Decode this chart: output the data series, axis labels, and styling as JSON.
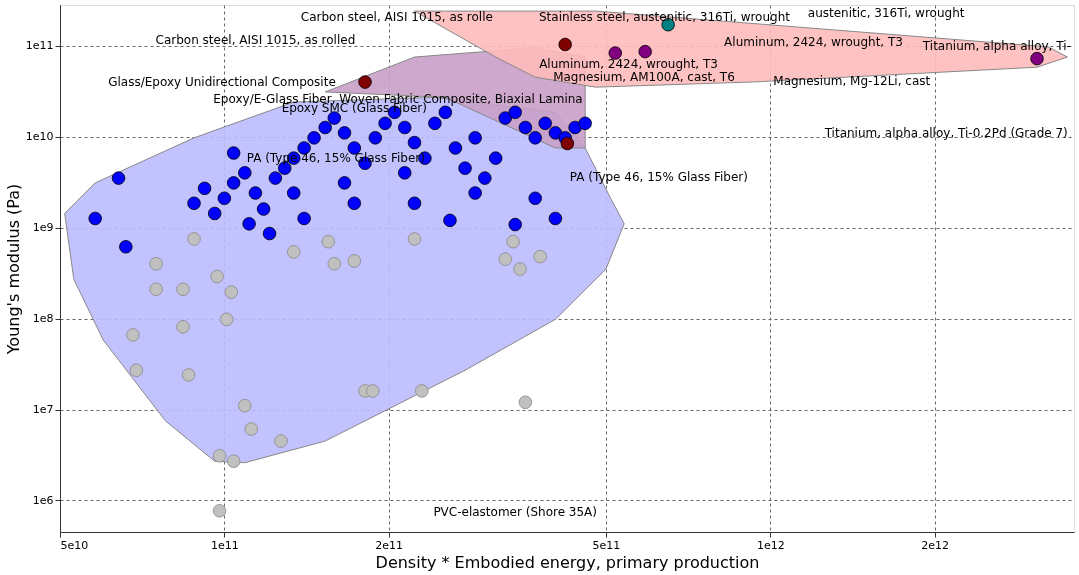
{
  "chart_data": {
    "type": "scatter",
    "xlabel": "Density * Embodied energy, primary production",
    "ylabel": "Young's modulus (Pa)",
    "log": "xy",
    "grid": true,
    "marker": "circle",
    "xlim": [
      50000000000.0,
      3600000000000.0
    ],
    "ylim": [
      450000.0,
      280000000000.0
    ],
    "xticks": [
      {
        "value": 50000000000.0,
        "label": "5e10"
      },
      {
        "value": 100000000000.0,
        "label": "1e11"
      },
      {
        "value": 200000000000.0,
        "label": "2e11"
      },
      {
        "value": 500000000000.0,
        "label": "5e11"
      },
      {
        "value": 1000000000000.0,
        "label": "1e12"
      },
      {
        "value": 2000000000000.0,
        "label": "2e12"
      }
    ],
    "yticks": [
      {
        "value": 1000000.0,
        "label": "1e6"
      },
      {
        "value": 10000000.0,
        "label": "1e7"
      },
      {
        "value": 100000000.0,
        "label": "1e8"
      },
      {
        "value": 1000000000.0,
        "label": "1e9"
      },
      {
        "value": 10000000000.0,
        "label": "1e10"
      },
      {
        "value": 100000000000.0,
        "label": "1e11"
      }
    ],
    "series": [
      {
        "type": "area",
        "marker": "none",
        "color": "#bbbbff",
        "x": [
          51000000000.0,
          58000000000.0,
          88000000000.0,
          134000000000.0,
          243000000000.0,
          404000000000.0,
          458000000000.0,
          510000000000.0,
          540000000000.0,
          500000000000.0,
          404000000000.0,
          276000000000.0,
          153000000000.0,
          109000000000.0,
          96000000000.0,
          78000000000.0,
          60000000000.0,
          53000000000.0,
          51000000000.0
        ],
        "values": [
          1430000000.0,
          3100000000.0,
          9700000000.0,
          24000000000.0,
          27000000000.0,
          18500000000.0,
          7500000000.0,
          2100000000.0,
          1100000000.0,
          350000000.0,
          98000000.0,
          27000000.0,
          4500000.0,
          2600000.0,
          2700000.0,
          7500000.0,
          58000000.0,
          270000000.0,
          1430000000.0
        ]
      },
      {
        "type": "area",
        "marker": "none",
        "color": "#c9a0c8",
        "x": [
          153000000000.0,
          223000000000.0,
          371000000000.0,
          458000000000.0,
          458000000000.0,
          404000000000.0,
          254000000000.0,
          153000000000.0
        ],
        "values": [
          31000000000.0,
          75000000000.0,
          95000000000.0,
          75000000000.0,
          7500000000.0,
          7500000000.0,
          27000000000.0,
          31000000000.0
        ]
      },
      {
        "type": "area",
        "marker": "none",
        "color": "#ffbbbb",
        "x": [
          223000000000.0,
          479000000000.0,
          3230000000000.0,
          3500000000000.0,
          3080000000000.0,
          940000000000.0,
          479000000000.0,
          371000000000.0,
          314000000000.0,
          223000000000.0
        ],
        "values": [
          240000000000.0,
          240000000000.0,
          97000000000.0,
          75000000000.0,
          58000000000.0,
          40000000000.0,
          35000000000.0,
          45000000000.0,
          75000000000.0,
          240000000000.0
        ]
      },
      {
        "color": "#c0c0c0",
        "x": [
          68000000000.0,
          69000000000.0,
          75000000000.0,
          75000000000.0,
          84000000000.0,
          84000000000.0,
          86000000000.0,
          88000000000.0,
          97000000000.0,
          101000000000.0,
          103000000000.0,
          109000000000.0,
          112000000000.0,
          127000000000.0,
          98000000000.0,
          104000000000.0,
          134000000000.0,
          155000000000.0,
          159000000000.0,
          173000000000.0,
          181000000000.0,
          187000000000.0,
          230000000000.0,
          356000000000.0,
          98000000000.0,
          327000000000.0,
          348000000000.0,
          223000000000.0,
          338000000000.0,
          379000000000.0
        ],
        "values": [
          66000000.0,
          27000000.0,
          400000000.0,
          210000000.0,
          210000000.0,
          81000000.0,
          24000000.0,
          750000000.0,
          290000000.0,
          98000000.0,
          195000000.0,
          11000000.0,
          6100000.0,
          4500000.0,
          3100000.0,
          2700000.0,
          540000000.0,
          700000000.0,
          400000000.0,
          430000000.0,
          16000000.0,
          16000000.0,
          16000000.0,
          12000000.0,
          770000.0,
          450000000.0,
          350000000.0,
          750000000.0,
          700000000.0,
          480000000.0
        ]
      },
      {
        "color": "#0000ff",
        "x": [
          58000000000.0,
          66000000000.0,
          64000000000.0,
          88000000000.0,
          92000000000.0,
          96000000000.0,
          100000000000.0,
          104000000000.0,
          109000000000.0,
          114000000000.0,
          118000000000.0,
          124000000000.0,
          129000000000.0,
          134000000000.0,
          140000000000.0,
          146000000000.0,
          153000000000.0,
          159000000000.0,
          166000000000.0,
          173000000000.0,
          181000000000.0,
          189000000000.0,
          197000000000.0,
          205000000000.0,
          214000000000.0,
          223000000000.0,
          233000000000.0,
          243000000000.0,
          254000000000.0,
          265000000000.0,
          276000000000.0,
          288000000000.0,
          300000000000.0,
          314000000000.0,
          327000000000.0,
          341000000000.0,
          356000000000.0,
          371000000000.0,
          387000000000.0,
          404000000000.0,
          421000000000.0,
          439000000000.0,
          458000000000.0,
          371000000000.0,
          404000000000.0,
          259000000000.0,
          341000000000.0,
          121000000000.0,
          104000000000.0,
          134000000000.0,
          166000000000.0,
          214000000000.0,
          288000000000.0,
          223000000000.0,
          173000000000.0,
          140000000000.0,
          111000000000.0
        ],
        "values": [
          1260000000.0,
          615000000.0,
          3500000000.0,
          1850000000.0,
          2700000000.0,
          1430000000.0,
          2100000000.0,
          3100000000.0,
          4000000000.0,
          2400000000.0,
          1600000000.0,
          3500000000.0,
          4500000000.0,
          5800000000.0,
          7500000000.0,
          9700000000.0,
          12600000000.0,
          16000000000.0,
          11000000000.0,
          7500000000.0,
          5100000000.0,
          9700000000.0,
          14000000000.0,
          18500000000.0,
          12600000000.0,
          8600000000.0,
          5800000000.0,
          14000000000.0,
          18500000000.0,
          7500000000.0,
          4500000000.0,
          9700000000.0,
          3500000000.0,
          5800000000.0,
          16000000000.0,
          18500000000.0,
          12600000000.0,
          9700000000.0,
          14000000000.0,
          11000000000.0,
          9700000000.0,
          12600000000.0,
          14000000000.0,
          2100000000.0,
          1260000000.0,
          1200000000.0,
          1080000000.0,
          860000000.0,
          6600000000.0,
          2400000000.0,
          3100000000.0,
          4000000000.0,
          2400000000.0,
          1850000000.0,
          1850000000.0,
          1260000000.0,
          1100000000.0
        ]
      },
      {
        "color": "#800000",
        "x": [
          421000000000.0,
          181000000000.0,
          425000000000.0
        ],
        "values": [
          103000000000.0,
          39800000000.0,
          8400000000.0
        ]
      },
      {
        "color": "#800080",
        "x": [
          590000000000.0,
          520000000000.0,
          3080000000000.0
        ],
        "values": [
          86000000000.0,
          83000000000.0,
          72000000000.0
        ]
      },
      {
        "color": "#008080",
        "x": [
          650000000000.0
        ],
        "values": [
          170000000000.0
        ]
      }
    ],
    "annotations": [
      "Carbon steel, AISI 1015, as rolled",
      "Carbon steel, AISI 1015, as rolle",
      "Stainless steel, austenitic, 316Ti, wrought",
      "austenitic, 316Ti, wrought",
      "Glass/Epoxy Unidirectional Composite",
      "Epoxy/E-Glass Fiber, Woven Fabric Composite, Biaxial Lamina",
      "Epoxy SMC (Glass Fiber)",
      "PA (Type 46, 15% Glass Fiber)",
      "PA (Type 46, 15% Glass Fiber)",
      "Aluminum, 2424, wrought, T3",
      "Aluminum, 2424, wrought, T3",
      "Magnesium, AM100A, cast, T6",
      "Magnesium, Mg-12Li, cast",
      "Titanium, alpha alloy, Ti-",
      "Titanium, alpha alloy, Ti-0.2Pd (Grade 7)",
      "PVC-elastomer (Shore 35A)"
    ]
  }
}
